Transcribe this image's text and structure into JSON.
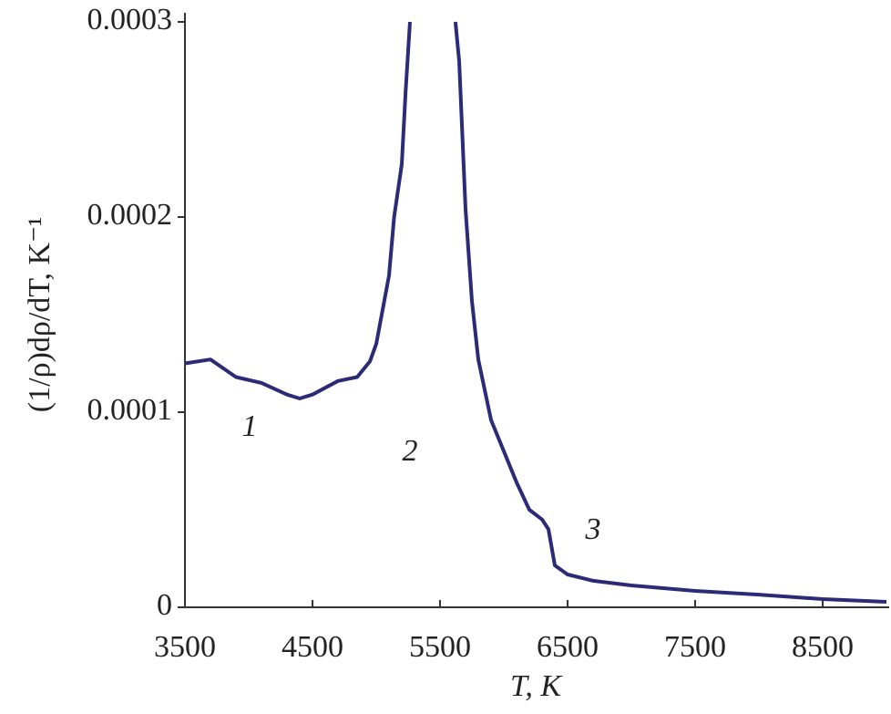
{
  "chart_data": {
    "type": "line",
    "xlabel": "T, K",
    "ylabel": "(1/ρ)dρ/dT, K⁻¹",
    "annotations": [
      "1",
      "2",
      "3"
    ],
    "color": "#2b2b78",
    "x": [
      3500,
      3700,
      3900,
      4100,
      4300,
      4400,
      4500,
      4700,
      4850,
      4950,
      5000,
      5100,
      5140,
      5200,
      5230,
      5264,
      null,
      5621,
      5650,
      5700,
      5750,
      5800,
      5900,
      6000,
      6100,
      6200,
      6300,
      6350,
      6400,
      6500,
      6700,
      7000,
      7500,
      8000,
      8500,
      9000
    ],
    "values": [
      0.000125,
      0.000127,
      0.000118,
      0.000115,
      0.000109,
      0.000107,
      0.000109,
      0.000116,
      0.000118,
      0.000126,
      0.000135,
      0.00017,
      0.0002,
      0.000227,
      0.000264,
      0.0003,
      null,
      0.0003,
      0.00028,
      0.000204,
      0.000157,
      0.000127,
      9.6e-05,
      8e-05,
      6.4e-05,
      5e-05,
      4.5e-05,
      4e-05,
      2.15e-05,
      1.68e-05,
      1.36e-05,
      1.12e-05,
      8.4e-06,
      6.5e-06,
      4.2e-06,
      2.8e-06
    ],
    "xlim": [
      3500,
      9000
    ],
    "xticks": [
      3500,
      4500,
      5500,
      6500,
      7500,
      8500
    ],
    "ylim": [
      0,
      0.0003
    ],
    "yticks": [
      0,
      0.0001,
      0.0002,
      0.0003
    ]
  }
}
